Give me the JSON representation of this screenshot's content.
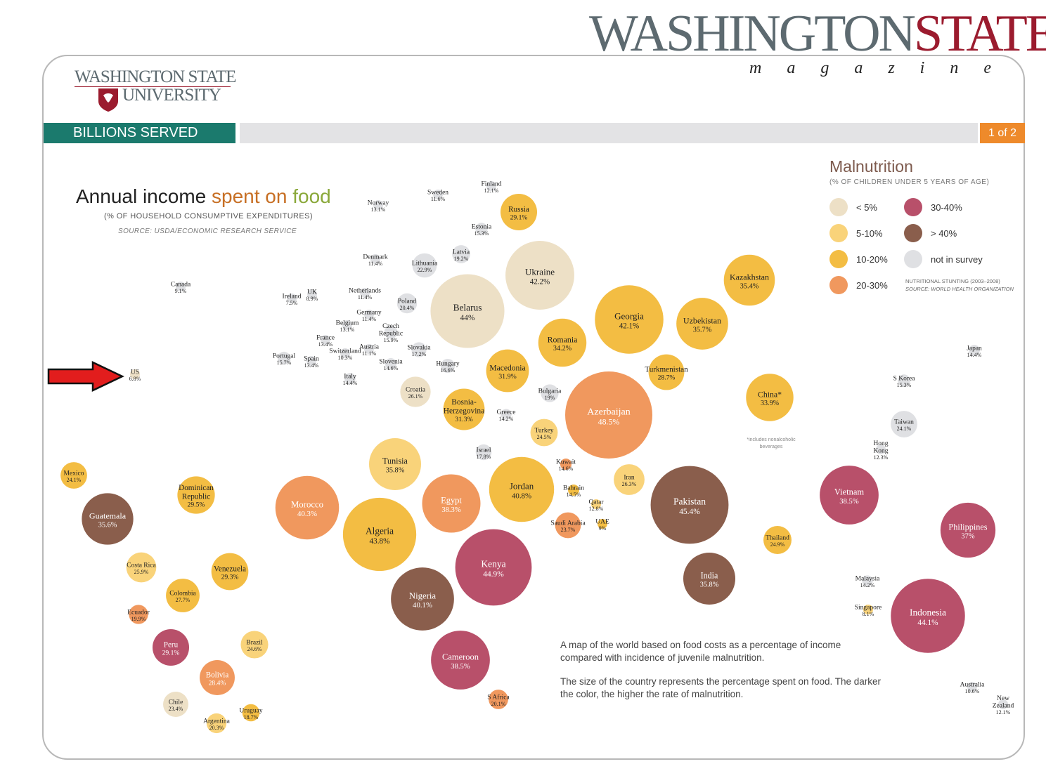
{
  "masthead": {
    "part1": "WASHINGTON",
    "part2": "STATE",
    "sub": "magazine"
  },
  "logo": {
    "line1": "WASHINGTON STATE",
    "line2": "UNIVERSITY"
  },
  "section_bar": {
    "label": "BILLIONS SERVED",
    "page": "1 of 2"
  },
  "heading": {
    "word1": "Annual income ",
    "word2": "spent on ",
    "word3": "food",
    "subtitle": "(% OF HOUSEHOLD CONSUMPTIVE EXPENDITURES)",
    "source": "SOURCE: USDA/ECONOMIC RESEARCH SERVICE"
  },
  "legend": {
    "title": "Malnutrition",
    "subtitle": "(% OF CHILDREN UNDER 5 YEARS OF AGE)",
    "items": [
      {
        "label": "< 5%",
        "color": "#ede0c6"
      },
      {
        "label": "5-10%",
        "color": "#f9d37a"
      },
      {
        "label": "10-20%",
        "color": "#f3bd43"
      },
      {
        "label": "20-30%",
        "color": "#f0985e"
      },
      {
        "label": "30-40%",
        "color": "#b8506a"
      },
      {
        "label": "> 40%",
        "color": "#8a5e4c"
      },
      {
        "label": "not in survey",
        "color": "#dfe0e3"
      }
    ],
    "note": "NUTRITIONAL STUNTING (2003–2008)",
    "note_source": "SOURCE: WORLD HEALTH ORGANIZATION"
  },
  "china_note": "*includes nonalcoholic beverages",
  "caption": {
    "p1": "A map of the world based on food costs as a percentage of income compared with incidence of juvenile malnutrition.",
    "p2": "The size of the country represents the percentage spent on food. The darker the color, the higher the rate of malnutrition."
  },
  "chart_data": {
    "type": "bubble",
    "title": "Annual income spent on food",
    "size_variable": "% of household consumptive expenditures spent on food",
    "color_variable": "malnutrition category (% of children under 5)",
    "points": [
      {
        "name": "Canada",
        "value": 9.1,
        "category": "not in survey"
      },
      {
        "name": "US",
        "value": 6.8,
        "category": "< 5%"
      },
      {
        "name": "Norway",
        "value": 13.1,
        "category": "not in survey"
      },
      {
        "name": "Sweden",
        "value": 11.6,
        "category": "not in survey"
      },
      {
        "name": "Finland",
        "value": 12.1,
        "category": "not in survey"
      },
      {
        "name": "Russia",
        "value": 29.1,
        "category": "10-20%"
      },
      {
        "name": "Estonia",
        "value": 15.3,
        "category": "not in survey"
      },
      {
        "name": "Latvia",
        "value": 19.2,
        "category": "not in survey"
      },
      {
        "name": "Lithuania",
        "value": 22.9,
        "category": "not in survey"
      },
      {
        "name": "Denmark",
        "value": 11.4,
        "category": "not in survey"
      },
      {
        "name": "Ukraine",
        "value": 42.2,
        "category": "< 5%"
      },
      {
        "name": "Netherlands",
        "value": 11.4,
        "category": "not in survey"
      },
      {
        "name": "Ireland",
        "value": 7.5,
        "category": "not in survey"
      },
      {
        "name": "UK",
        "value": 8.9,
        "category": "not in survey"
      },
      {
        "name": "Poland",
        "value": 20.4,
        "category": "not in survey"
      },
      {
        "name": "Belarus",
        "value": 44,
        "category": "< 5%"
      },
      {
        "name": "Germany",
        "value": 11.4,
        "category": "not in survey"
      },
      {
        "name": "Belgium",
        "value": 13.1,
        "category": "not in survey"
      },
      {
        "name": "Czech Republic",
        "value": 15.9,
        "category": "not in survey"
      },
      {
        "name": "France",
        "value": 13.4,
        "category": "not in survey"
      },
      {
        "name": "Austria",
        "value": 11.1,
        "category": "not in survey"
      },
      {
        "name": "Slovakia",
        "value": 17.2,
        "category": "not in survey"
      },
      {
        "name": "Switzerland",
        "value": 10.3,
        "category": "not in survey"
      },
      {
        "name": "Portugal",
        "value": 15.7,
        "category": "not in survey"
      },
      {
        "name": "Spain",
        "value": 13.4,
        "category": "not in survey"
      },
      {
        "name": "Slovenia",
        "value": 14.6,
        "category": "not in survey"
      },
      {
        "name": "Hungary",
        "value": 16.6,
        "category": "not in survey"
      },
      {
        "name": "Italy",
        "value": 14.4,
        "category": "not in survey"
      },
      {
        "name": "Croatia",
        "value": 26.1,
        "category": "< 5%"
      },
      {
        "name": "Macedonia",
        "value": 31.9,
        "category": "10-20%"
      },
      {
        "name": "Romania",
        "value": 34.2,
        "category": "10-20%"
      },
      {
        "name": "Georgia",
        "value": 42.1,
        "category": "10-20%"
      },
      {
        "name": "Uzbekistan",
        "value": 35.7,
        "category": "10-20%"
      },
      {
        "name": "Kazakhstan",
        "value": 35.4,
        "category": "10-20%"
      },
      {
        "name": "Turkmenistan",
        "value": 28.7,
        "category": "10-20%"
      },
      {
        "name": "Bulgaria",
        "value": 19,
        "category": "not in survey"
      },
      {
        "name": "Bosnia-Herzegovina",
        "value": 31.3,
        "category": "10-20%"
      },
      {
        "name": "Greece",
        "value": 14.2,
        "category": "not in survey"
      },
      {
        "name": "Azerbaijan",
        "value": 48.5,
        "category": "20-30%"
      },
      {
        "name": "China*",
        "value": 33.9,
        "category": "10-20%"
      },
      {
        "name": "Turkey",
        "value": 24.5,
        "category": "5-10%"
      },
      {
        "name": "Israel",
        "value": 17.8,
        "category": "not in survey"
      },
      {
        "name": "Kuwait",
        "value": 14.6,
        "category": "20-30%"
      },
      {
        "name": "Tunisia",
        "value": 35.8,
        "category": "5-10%"
      },
      {
        "name": "Jordan",
        "value": 40.8,
        "category": "10-20%"
      },
      {
        "name": "Bahrain",
        "value": 14.5,
        "category": "10-20%"
      },
      {
        "name": "Qatar",
        "value": 12.8,
        "category": "5-10%"
      },
      {
        "name": "Iran",
        "value": 26.3,
        "category": "5-10%"
      },
      {
        "name": "Egypt",
        "value": 38.3,
        "category": "20-30%"
      },
      {
        "name": "Morocco",
        "value": 40.3,
        "category": "20-30%"
      },
      {
        "name": "Saudi Arabia",
        "value": 23.7,
        "category": "20-30%"
      },
      {
        "name": "UAE",
        "value": 9,
        "category": "10-20%"
      },
      {
        "name": "Pakistan",
        "value": 45.4,
        "category": "> 40%"
      },
      {
        "name": "Algeria",
        "value": 43.8,
        "category": "10-20%"
      },
      {
        "name": "Kenya",
        "value": 44.9,
        "category": "30-40%"
      },
      {
        "name": "Nigeria",
        "value": 40.1,
        "category": "> 40%"
      },
      {
        "name": "Cameroon",
        "value": 38.5,
        "category": "30-40%"
      },
      {
        "name": "S Africa",
        "value": 20.1,
        "category": "20-30%"
      },
      {
        "name": "India",
        "value": 35.8,
        "category": "> 40%"
      },
      {
        "name": "Thailand",
        "value": 24.9,
        "category": "10-20%"
      },
      {
        "name": "Japan",
        "value": 14.4,
        "category": "not in survey"
      },
      {
        "name": "S Korea",
        "value": 15.3,
        "category": "not in survey"
      },
      {
        "name": "Taiwan",
        "value": 24.1,
        "category": "not in survey"
      },
      {
        "name": "Hong Kong",
        "value": 12.3,
        "category": "not in survey"
      },
      {
        "name": "Vietnam",
        "value": 38.5,
        "category": "30-40%"
      },
      {
        "name": "Philippines",
        "value": 37,
        "category": "30-40%"
      },
      {
        "name": "Malaysia",
        "value": 14.2,
        "category": "not in survey"
      },
      {
        "name": "Singapore",
        "value": 8.1,
        "category": "5-10%"
      },
      {
        "name": "Indonesia",
        "value": 44.1,
        "category": "30-40%"
      },
      {
        "name": "Australia",
        "value": 10.6,
        "category": "not in survey"
      },
      {
        "name": "New Zealand",
        "value": 12.1,
        "category": "not in survey"
      },
      {
        "name": "Mexico",
        "value": 24.1,
        "category": "10-20%"
      },
      {
        "name": "Guatemala",
        "value": 35.6,
        "category": "> 40%"
      },
      {
        "name": "Dominican Republic",
        "value": 29.5,
        "category": "10-20%"
      },
      {
        "name": "Costa Rica",
        "value": 25.9,
        "category": "5-10%"
      },
      {
        "name": "Venezuela",
        "value": 29.3,
        "category": "10-20%"
      },
      {
        "name": "Colombia",
        "value": 27.7,
        "category": "10-20%"
      },
      {
        "name": "Ecuador",
        "value": 19.9,
        "category": "20-30%"
      },
      {
        "name": "Peru",
        "value": 29.1,
        "category": "30-40%"
      },
      {
        "name": "Brazil",
        "value": 24.6,
        "category": "5-10%"
      },
      {
        "name": "Bolivia",
        "value": 28.4,
        "category": "20-30%"
      },
      {
        "name": "Chile",
        "value": 23.4,
        "category": "< 5%"
      },
      {
        "name": "Uruguay",
        "value": 18.7,
        "category": "10-20%"
      },
      {
        "name": "Argentina",
        "value": 20.3,
        "category": "5-10%"
      }
    ]
  }
}
